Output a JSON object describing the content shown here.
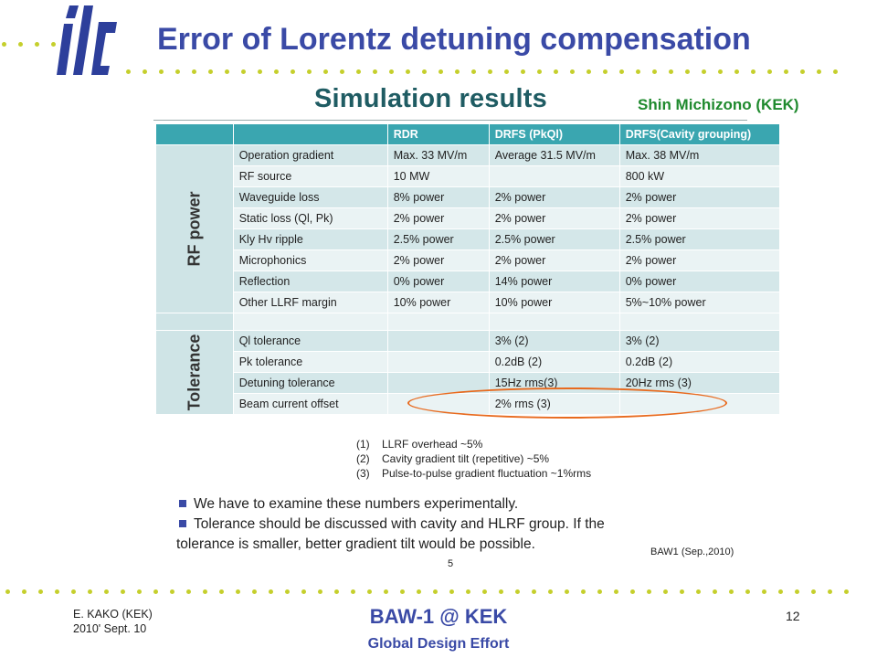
{
  "header": {
    "logo_text": "ilc",
    "title": "Error of Lorentz detuning compensation",
    "author": "Shin Michizono (KEK)"
  },
  "slide": {
    "subtitle": "Simulation results",
    "table": {
      "headers": [
        "",
        "",
        "RDR",
        "DRFS (PkQl)",
        "DRFS(Cavity grouping)"
      ],
      "groups": [
        {
          "label": "RF power",
          "rows": [
            [
              "Operation gradient",
              "Max. 33 MV/m",
              "Average 31.5 MV/m",
              "Max. 38 MV/m"
            ],
            [
              "RF source",
              "10 MW",
              "",
              "800 kW"
            ],
            [
              "Waveguide loss",
              "8% power",
              "2% power",
              "2% power"
            ],
            [
              "Static loss (Ql, Pk)",
              "2% power",
              "2% power",
              "2% power"
            ],
            [
              "Kly Hv ripple",
              "2.5% power",
              "2.5% power",
              "2.5% power"
            ],
            [
              "Microphonics",
              "2% power",
              "2% power",
              "2% power"
            ],
            [
              "Reflection",
              "0% power",
              "14% power",
              "0% power"
            ],
            [
              "Other LLRF margin",
              "10% power",
              "10% power",
              "5%~10% power"
            ]
          ]
        },
        {
          "label": "Tolerance",
          "rows": [
            [
              "Ql tolerance",
              "",
              "3% (2)",
              "3% (2)"
            ],
            [
              "Pk tolerance",
              "",
              "0.2dB (2)",
              "0.2dB (2)"
            ],
            [
              "Detuning tolerance",
              "",
              "15Hz rms(3)",
              "20Hz rms (3)"
            ],
            [
              "Beam current offset",
              "",
              "2% rms (3)",
              ""
            ]
          ]
        }
      ]
    },
    "notes": [
      {
        "num": "(1)",
        "text": "LLRF overhead ~5%"
      },
      {
        "num": "(2)",
        "text": "Cavity gradient tilt (repetitive) ~5%"
      },
      {
        "num": "(3)",
        "text": "Pulse-to-pulse gradient fluctuation ~1%rms"
      }
    ],
    "bullets": [
      "We have to examine these numbers experimentally.",
      "Tolerance should be discussed with cavity  and HLRF group.  If the"
    ],
    "bullet_continuation": "tolerance is smaller, better gradient tilt would be possible.",
    "reference": "BAW1 (Sep.,2010)",
    "inner_page_number": "5"
  },
  "footer": {
    "presenter": "E. KAKO (KEK)",
    "date": "2010' Sept. 10",
    "event": "BAW-1 @ KEK",
    "organization": "Global Design Effort",
    "page_number": "12"
  },
  "colors": {
    "title": "#3a4aa6",
    "author": "#1f8a2e",
    "dots": "#c5cf2c",
    "table_header": "#3aa6b0",
    "highlight_ellipse": "#e86a1e"
  }
}
